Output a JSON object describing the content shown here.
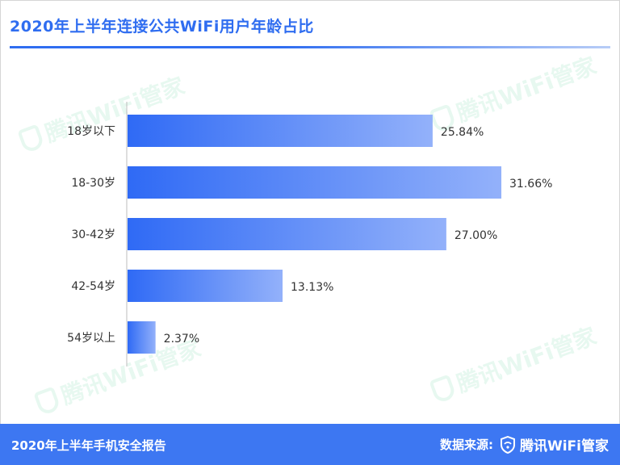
{
  "title": "2020年上半年连接公共WiFi用户年龄占比",
  "footer": {
    "report": "2020年上半年手机安全报告",
    "source_label": "数据来源:",
    "brand": "腾讯WiFi管家"
  },
  "watermark_text": "腾讯WiFi管家",
  "colors": {
    "accent": "#3d77f2",
    "bar_start": "#2f6af5",
    "bar_end": "#93b1fa"
  },
  "chart_data": {
    "type": "bar",
    "orientation": "horizontal",
    "categories": [
      "18岁以下",
      "18-30岁",
      "30-42岁",
      "42-54岁",
      "54岁以上"
    ],
    "values": [
      25.84,
      31.66,
      27.0,
      13.13,
      2.37
    ],
    "value_labels": [
      "25.84%",
      "31.66%",
      "27.00%",
      "13.13%",
      "2.37%"
    ],
    "unit": "%",
    "xlim": [
      0,
      32
    ],
    "grid": false,
    "legend": "none"
  }
}
